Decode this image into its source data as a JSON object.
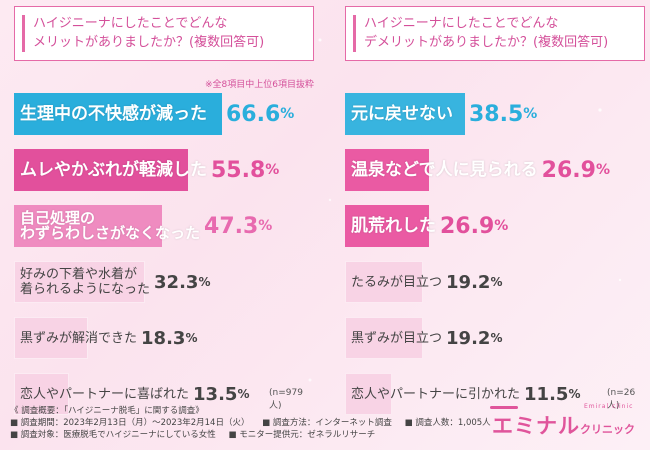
{
  "chart_data": [
    {
      "type": "bar",
      "question": [
        "ハイジニーナにしたことでどんな",
        "メリットがありましたか？(複数回答可)"
      ],
      "note": "※全8項目中上位6項目抜粋",
      "unit": "%",
      "n_label": "(n=979人)",
      "xlim": [
        0,
        100
      ],
      "categories": [
        [
          "生理中の不快感が減った"
        ],
        [
          "ムレやかぶれが軽減した"
        ],
        [
          "自己処理の",
          "わずらわしさがなくなった"
        ],
        [
          "好みの下着や水着が",
          "着られるようになった"
        ],
        [
          "黒ずみが解消できた"
        ],
        [
          "恋人やパートナーに喜ばれた"
        ]
      ],
      "values": [
        66.6,
        55.8,
        47.3,
        32.3,
        18.3,
        13.5
      ]
    },
    {
      "type": "bar",
      "question": [
        "ハイジニーナにしたことでどんな",
        "デメリットがありましたか？(複数回答可)"
      ],
      "unit": "%",
      "n_label": "(n=26人)",
      "xlim": [
        0,
        100
      ],
      "categories": [
        [
          "元に戻せない"
        ],
        [
          "温泉などで人に見られる"
        ],
        [
          "肌荒れした"
        ],
        [
          "たるみが目立つ"
        ],
        [
          "黒ずみが目立つ"
        ],
        [
          "恋人やパートナーに引かれた"
        ]
      ],
      "values": [
        38.5,
        26.9,
        26.9,
        19.2,
        19.2,
        11.5
      ]
    }
  ],
  "colors": {
    "left": [
      "#2aaedc",
      "#e2509c",
      "#ef8bc0",
      "#f8d3e5",
      "#f8d3e5",
      "#f8d3e5"
    ],
    "right": [
      "#38b4df",
      "#ea5aa3",
      "#ea5aa3",
      "#f8d3e5",
      "#f8d3e5",
      "#f8d3e5"
    ],
    "pct_dark": [
      "#2aaedc",
      "#e2509c",
      "#e86aaf",
      "#444444",
      "#444444",
      "#444444"
    ],
    "pct_dark_right": [
      "#2aaedc",
      "#e2509c",
      "#e2509c",
      "#444444",
      "#444444",
      "#444444"
    ]
  },
  "footer": {
    "line1": "《 調査概要：「ハイジニーナ脱毛」に関する調査》",
    "period": "■ 調査期間：2023年2月13日（月）〜2023年2月14日（火）",
    "method": "■ 調査方法：インターネット調査",
    "people": "■ 調査人数：1,005人",
    "target": "■ 調査対象：医療脱毛でハイジニーナにしている女性",
    "monitor": "■ モニター提供元：ゼネラルリサーチ"
  },
  "brand": {
    "main": "エミナル",
    "sub": "クリニック",
    "tiny": "Emiral clinic"
  }
}
